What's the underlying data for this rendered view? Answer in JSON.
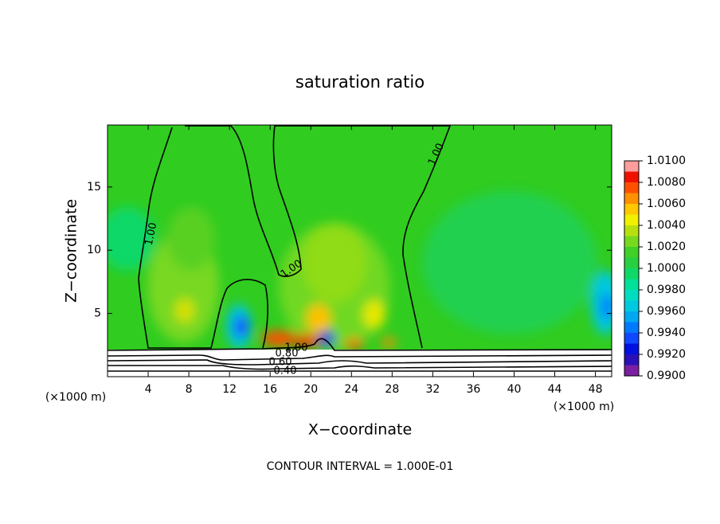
{
  "chart_data": {
    "type": "contour",
    "title": "saturation ratio",
    "xlabel": "X−coordinate",
    "ylabel": "Z−coordinate",
    "x_unit_label": "(×1000 m)",
    "footnote": "CONTOUR INTERVAL = 1.000E-01",
    "xlim": [
      0,
      49.6
    ],
    "ylim": [
      0,
      19.9
    ],
    "xticks": [
      4,
      8,
      12,
      16,
      20,
      24,
      28,
      32,
      36,
      40,
      44,
      48
    ],
    "yticks": [
      5,
      10,
      15
    ],
    "contour_labels": [
      "1.00",
      "1.00",
      "1.00",
      "1.00",
      "0.80",
      "0.60",
      "0.40"
    ],
    "colorbar": {
      "lim": [
        0.99,
        1.01
      ],
      "colors": [
        "#7b1fa2",
        "#2a10b8",
        "#0010e0",
        "#1048ff",
        "#0078ff",
        "#00a8f0",
        "#00c8e0",
        "#00dcc0",
        "#00e098",
        "#10d868",
        "#28d040",
        "#40d028",
        "#78d820",
        "#b8e010",
        "#f0f000",
        "#ffc800",
        "#ff9000",
        "#ff5000",
        "#f01000",
        "#ff9c9c"
      ],
      "ticks": [
        {
          "value": 0.99,
          "label": "0.9900"
        },
        {
          "value": 0.992,
          "label": "0.9920"
        },
        {
          "value": 0.994,
          "label": "0.9940"
        },
        {
          "value": 0.996,
          "label": "0.9960"
        },
        {
          "value": 0.998,
          "label": "0.9980"
        },
        {
          "value": 1.0,
          "label": "1.0000"
        },
        {
          "value": 1.002,
          "label": "1.0020"
        },
        {
          "value": 1.004,
          "label": "1.0040"
        },
        {
          "value": 1.006,
          "label": "1.0060"
        },
        {
          "value": 1.008,
          "label": "1.0080"
        },
        {
          "value": 1.01,
          "label": "1.0100"
        }
      ]
    }
  }
}
